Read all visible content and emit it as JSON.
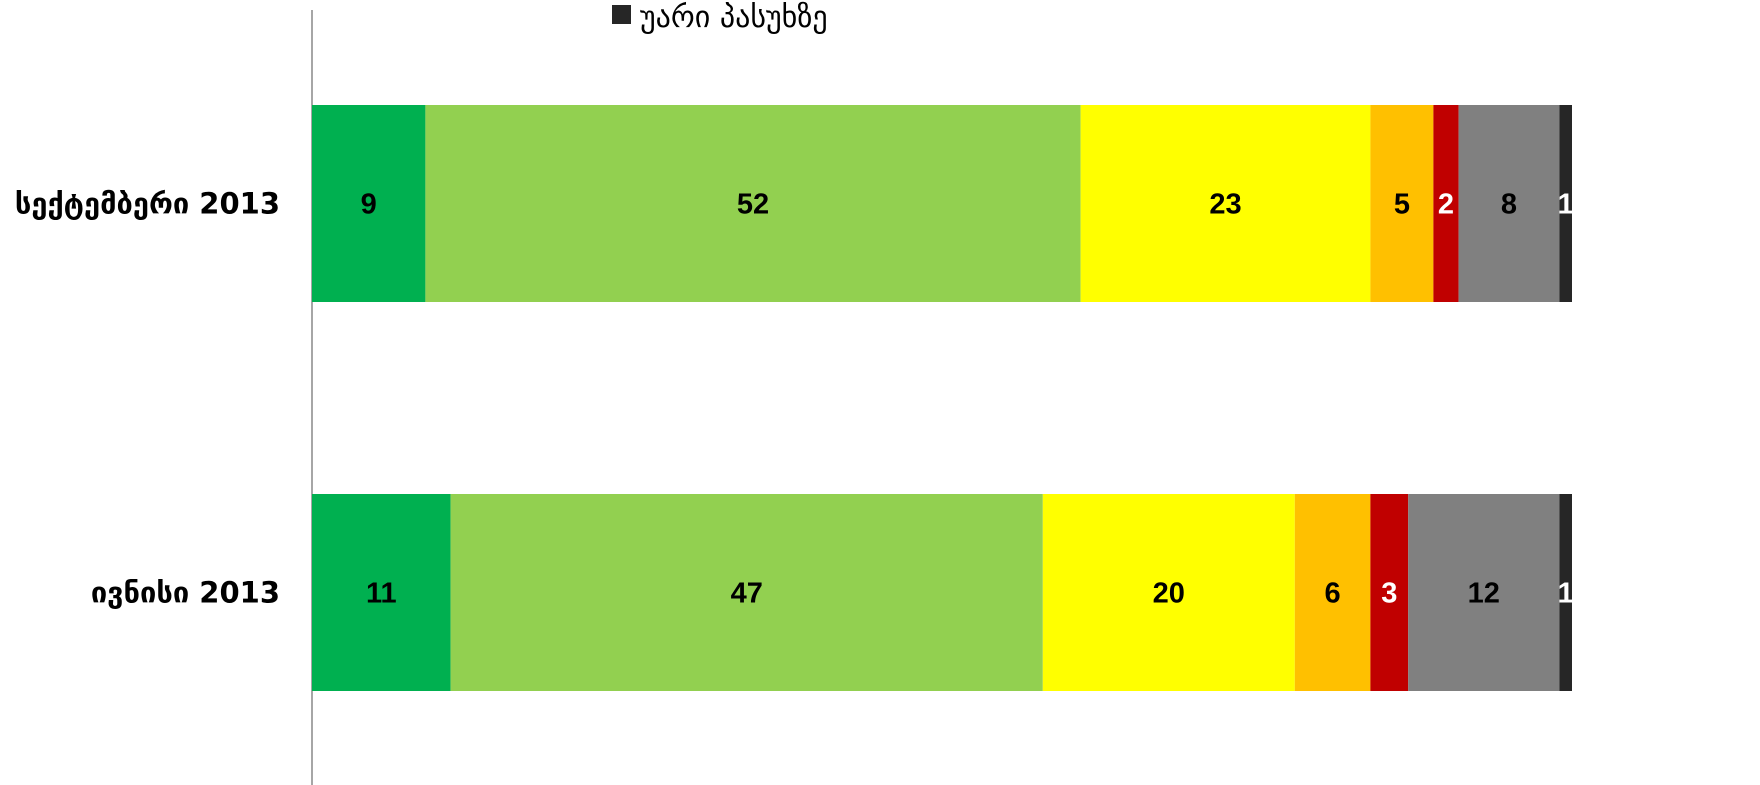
{
  "chart_data": {
    "type": "bar",
    "orientation": "horizontal",
    "stacked": true,
    "categories": [
      "სექტემბერი 2013",
      "ივნისი 2013"
    ],
    "series": [
      {
        "color": "#00B050",
        "values": [
          9,
          11
        ],
        "labels": [
          "9",
          "11"
        ],
        "label_color": "#000000"
      },
      {
        "color": "#92D050",
        "values": [
          52,
          47
        ],
        "labels": [
          "52",
          "47"
        ],
        "label_color": "#000000"
      },
      {
        "color": "#FFFF00",
        "values": [
          23,
          20
        ],
        "labels": [
          "23",
          "20"
        ],
        "label_color": "#000000"
      },
      {
        "color": "#FFC000",
        "values": [
          5,
          6
        ],
        "labels": [
          "5",
          "6"
        ],
        "label_color": "#000000"
      },
      {
        "color": "#C00000",
        "values": [
          2,
          3
        ],
        "labels": [
          "2",
          "3"
        ],
        "label_color": "#FFFFFF"
      },
      {
        "color": "#808080",
        "values": [
          8,
          12
        ],
        "labels": [
          "8",
          "12"
        ],
        "label_color": "#000000"
      },
      {
        "name": "უარი პასუხზე",
        "color": "#262626",
        "values": [
          1,
          1
        ],
        "labels": [
          "1",
          "1"
        ],
        "label_color": "#FFFFFF"
      }
    ],
    "legend_visible": [
      {
        "name": "უარი პასუხზე",
        "color": "#262626"
      }
    ],
    "legend_position": "top",
    "grid": false
  }
}
